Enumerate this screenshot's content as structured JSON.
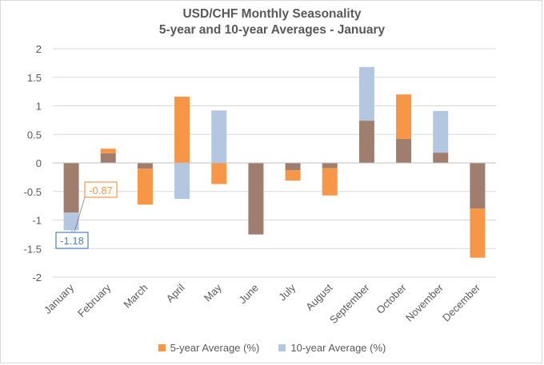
{
  "title": {
    "line1": "USD/CHF Monthly Seasonality",
    "line2": "5-year and 10-year Averages - January"
  },
  "legend": {
    "five_year_label": "5-year Average (%)",
    "ten_year_label": "10-year Average (%)"
  },
  "callouts": {
    "five_year_label": "-0.87",
    "ten_year_label": "-1.18"
  },
  "colors": {
    "five_year": "#f79646",
    "ten_year": "#b4c7e1",
    "overlap": "#a07e6e",
    "callout_five": "#f79646",
    "callout_ten": "#4f81bd",
    "grid": "#d9d9d9",
    "text": "#595959"
  },
  "chart_data": {
    "type": "bar",
    "title": "USD/CHF Monthly Seasonality 5-year and 10-year Averages - January",
    "categories": [
      "January",
      "February",
      "March",
      "April",
      "May",
      "June",
      "July",
      "August",
      "September",
      "October",
      "November",
      "December"
    ],
    "series": [
      {
        "name": "5-year Average (%)",
        "values": [
          -0.87,
          0.25,
          -0.73,
          1.16,
          -0.37,
          -1.25,
          -0.31,
          -0.57,
          0.74,
          1.2,
          0.18,
          -1.66
        ]
      },
      {
        "name": "10-year Average (%)",
        "values": [
          -1.18,
          0.17,
          -0.1,
          -0.63,
          0.92,
          -1.26,
          -0.13,
          -0.09,
          1.68,
          0.42,
          0.91,
          -0.8
        ]
      }
    ],
    "yticks": [
      "2",
      "1.5",
      "1",
      "0.5",
      "0",
      "-0.5",
      "-1",
      "-1.5",
      "-2"
    ],
    "ylim": [
      -2,
      2
    ],
    "xlabel": "",
    "ylabel": "",
    "grid": true,
    "legend_position": "bottom"
  }
}
